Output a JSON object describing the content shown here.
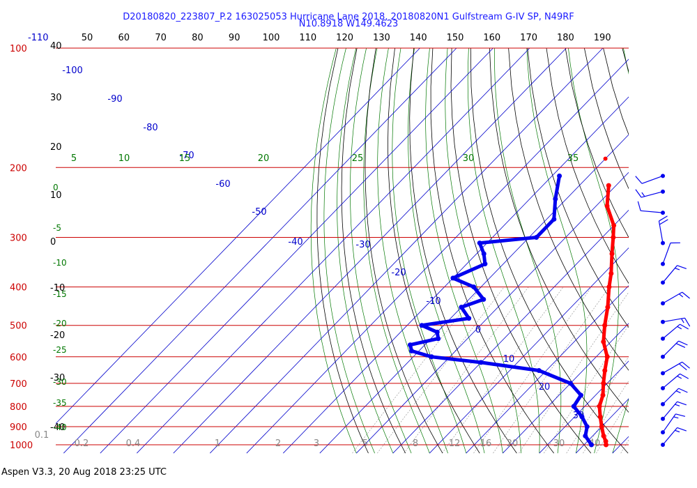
{
  "header": {
    "title_line1": "D20180820_223807_P.2 163025053 Hurricane Lane 2018, 20180820N1 Gulfstream G-IV SP, N49RF",
    "title_line2": "N10.8918 W149.4623"
  },
  "footer": {
    "text": "Aspen V3.3, 20 Aug 2018  23:25 UTC"
  },
  "colors": {
    "isobar": "#cc0000",
    "temperature": "#ff0000",
    "dewpoint": "#0000ee",
    "isotherm": "#0000cc",
    "dry_adiabat": "#000000",
    "mixing_ratio": "#888888",
    "moist_adiabat": "#007700"
  },
  "chart_data": {
    "type": "skew-t log-p sounding",
    "pressure_labels": [
      "100",
      "200",
      "300",
      "400",
      "500",
      "600",
      "700",
      "800",
      "900",
      "1000"
    ],
    "isotherm_labels_top": [
      "-110",
      "50",
      "60",
      "70",
      "80",
      "90",
      "100",
      "110",
      "120",
      "130",
      "140",
      "150",
      "160",
      "170",
      "180",
      "190"
    ],
    "isotherm_labels_diagonal": [
      "-100",
      "-90",
      "-80",
      "-70",
      "-60",
      "-50",
      "-40",
      "-30",
      "-20",
      "-10",
      "0",
      "10",
      "20",
      "30"
    ],
    "left_scale_labels": [
      "40",
      "30",
      "20",
      "10",
      "0",
      "-10",
      "-20",
      "-30",
      "-40"
    ],
    "theta_e_labels": [
      "5",
      "10",
      "15",
      "20",
      "25",
      "30",
      "35"
    ],
    "moist_adiabat_labels_left": [
      "0",
      "-5",
      "-10",
      "-15",
      "-20",
      "-25",
      "-30",
      "-35",
      "-40"
    ],
    "mixing_ratio_labels": [
      "0.1",
      "0.2",
      "0.4",
      "1",
      "2",
      "3",
      "5",
      "8",
      "12",
      "16",
      "20",
      "30",
      "40"
    ],
    "temperature_series": {
      "name": "Temperature",
      "units": "degC",
      "points": [
        [
          222,
          -42
        ],
        [
          250,
          -37
        ],
        [
          280,
          -30
        ],
        [
          300,
          -27
        ],
        [
          330,
          -23
        ],
        [
          370,
          -18
        ],
        [
          400,
          -15
        ],
        [
          450,
          -10
        ],
        [
          500,
          -6
        ],
        [
          550,
          -2
        ],
        [
          600,
          3
        ],
        [
          650,
          6
        ],
        [
          700,
          9
        ],
        [
          750,
          12
        ],
        [
          800,
          14
        ],
        [
          850,
          17
        ],
        [
          900,
          20
        ],
        [
          950,
          23
        ],
        [
          980,
          25
        ],
        [
          1000,
          26
        ]
      ]
    },
    "dewpoint_series": {
      "name": "Dewpoint",
      "units": "degC",
      "points": [
        [
          210,
          -58
        ],
        [
          240,
          -53
        ],
        [
          270,
          -48
        ],
        [
          300,
          -48
        ],
        [
          310,
          -62
        ],
        [
          330,
          -58
        ],
        [
          350,
          -55
        ],
        [
          380,
          -60
        ],
        [
          400,
          -52
        ],
        [
          430,
          -46
        ],
        [
          450,
          -50
        ],
        [
          480,
          -45
        ],
        [
          500,
          -56
        ],
        [
          520,
          -50
        ],
        [
          540,
          -48
        ],
        [
          560,
          -54
        ],
        [
          580,
          -52
        ],
        [
          600,
          -45
        ],
        [
          620,
          -30
        ],
        [
          650,
          -12
        ],
        [
          700,
          0
        ],
        [
          750,
          6
        ],
        [
          800,
          7
        ],
        [
          850,
          12
        ],
        [
          900,
          16
        ],
        [
          950,
          18
        ],
        [
          1000,
          22
        ]
      ]
    },
    "wind_barbs": [
      {
        "p": 210,
        "dir": 250,
        "spd": 10
      },
      {
        "p": 230,
        "dir": 255,
        "spd": 15
      },
      {
        "p": 260,
        "dir": 275,
        "spd": 10
      },
      {
        "p": 310,
        "dir": 350,
        "spd": 20
      },
      {
        "p": 350,
        "dir": 20,
        "spd": 10
      },
      {
        "p": 390,
        "dir": 40,
        "spd": 15
      },
      {
        "p": 440,
        "dir": 60,
        "spd": 15
      },
      {
        "p": 490,
        "dir": 80,
        "spd": 15
      },
      {
        "p": 540,
        "dir": 50,
        "spd": 15
      },
      {
        "p": 600,
        "dir": 45,
        "spd": 20
      },
      {
        "p": 660,
        "dir": 60,
        "spd": 20
      },
      {
        "p": 720,
        "dir": 50,
        "spd": 15
      },
      {
        "p": 790,
        "dir": 45,
        "spd": 15
      },
      {
        "p": 860,
        "dir": 40,
        "spd": 15
      },
      {
        "p": 930,
        "dir": 35,
        "spd": 15
      },
      {
        "p": 1000,
        "dir": 40,
        "spd": 15
      }
    ]
  }
}
